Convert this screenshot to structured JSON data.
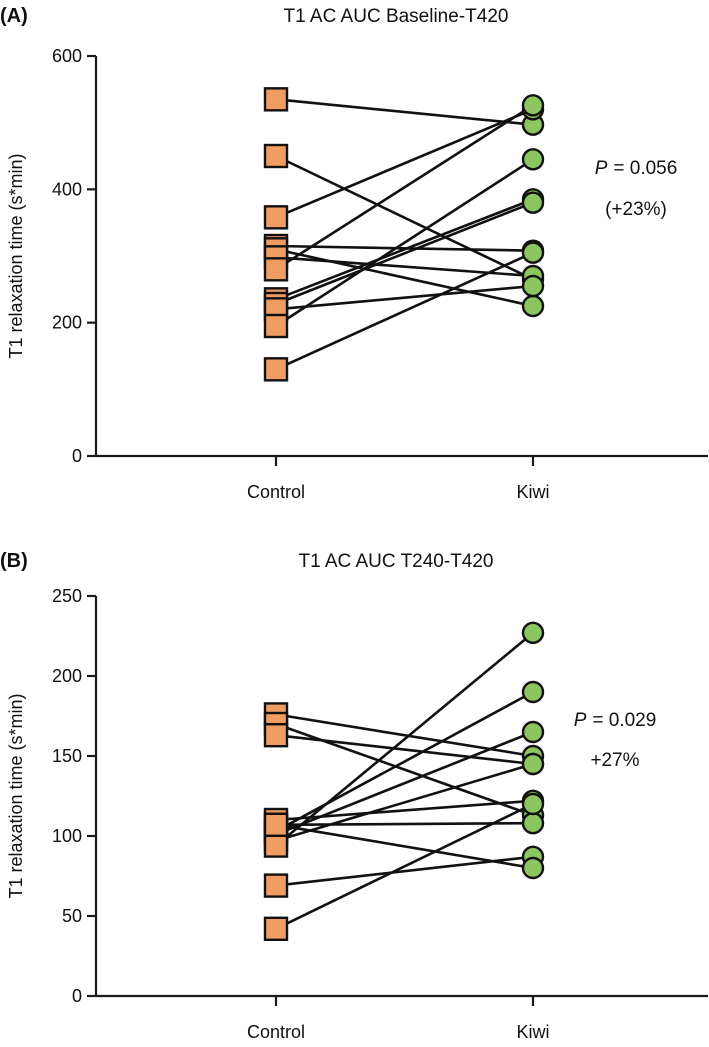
{
  "chart_data": [
    {
      "panel": "(A)",
      "type": "paired-scatter",
      "title": "T1 AC AUC Baseline-T420",
      "ylabel": "T1 relaxation time (s*min)",
      "ylim": [
        0,
        600
      ],
      "yticks": [
        "0",
        "200",
        "400",
        "600"
      ],
      "ytick_values": [
        0,
        200,
        400,
        600
      ],
      "categories": [
        "Control",
        "Kiwi"
      ],
      "series": [
        {
          "name": "Control",
          "marker": "square",
          "color": "#ef9c63"
        },
        {
          "name": "Kiwi",
          "marker": "circle",
          "color": "#8cc661"
        }
      ],
      "pairs": [
        [
          535,
          497
        ],
        [
          450,
          265
        ],
        [
          358,
          520
        ],
        [
          315,
          308
        ],
        [
          310,
          225
        ],
        [
          298,
          270
        ],
        [
          280,
          526
        ],
        [
          235,
          385
        ],
        [
          228,
          380
        ],
        [
          220,
          255
        ],
        [
          195,
          445
        ],
        [
          130,
          305
        ]
      ],
      "annotation": {
        "p_label": "P",
        "p_text": "= 0.056",
        "change": "(+23%)"
      }
    },
    {
      "panel": "(B)",
      "type": "paired-scatter",
      "title": "T1 AC AUC T240-T420",
      "ylabel": "T1 relaxation time (s*min)",
      "ylim": [
        0,
        250
      ],
      "yticks": [
        "0",
        "50",
        "100",
        "150",
        "200",
        "250"
      ],
      "ytick_values": [
        0,
        50,
        100,
        150,
        200,
        250
      ],
      "categories": [
        "Control",
        "Kiwi"
      ],
      "series": [
        {
          "name": "Control",
          "marker": "square",
          "color": "#ef9c63"
        },
        {
          "name": "Kiwi",
          "marker": "circle",
          "color": "#8cc661"
        }
      ],
      "pairs": [
        [
          176,
          150
        ],
        [
          170,
          113
        ],
        [
          163,
          145
        ],
        [
          110,
          122
        ],
        [
          107,
          108
        ],
        [
          103,
          190
        ],
        [
          101,
          165
        ],
        [
          97,
          145
        ],
        [
          94,
          227
        ],
        [
          69,
          87
        ],
        [
          42,
          120
        ],
        [
          107,
          80
        ]
      ],
      "annotation": {
        "p_label": "P",
        "p_text": "= 0.029",
        "change": "+27%"
      }
    }
  ]
}
